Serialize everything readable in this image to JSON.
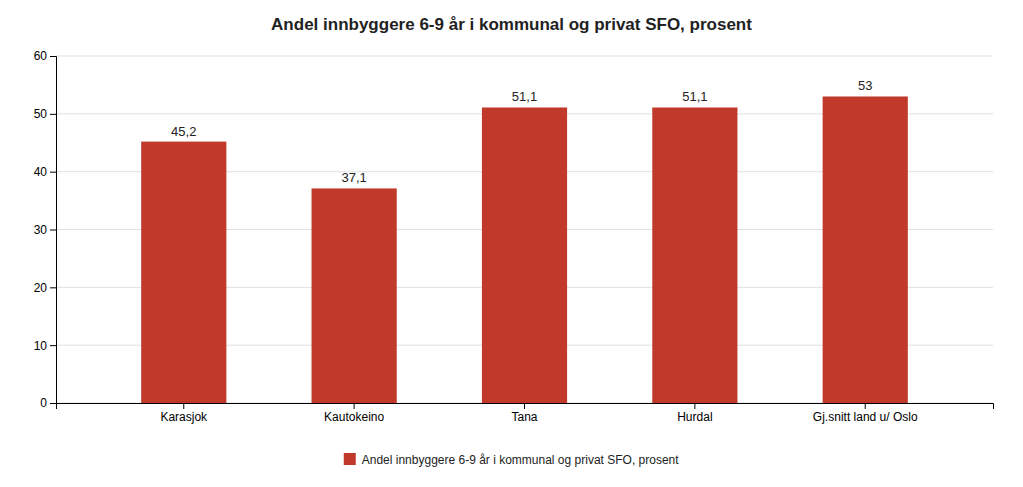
{
  "chart_data": {
    "type": "bar",
    "title": "Andel innbyggere 6-9 år i kommunal og privat SFO, prosent",
    "categories": [
      "Karasjok",
      "Kautokeino",
      "Tana",
      "Hurdal",
      "Gj.snitt land u/ Oslo"
    ],
    "series": [
      {
        "name": "Andel innbyggere 6-9 år i kommunal og privat SFO, prosent",
        "color": "#C0392B",
        "values": [
          45.2,
          37.1,
          51.1,
          51.1,
          53
        ],
        "value_labels": [
          "45,2",
          "37,1",
          "51,1",
          "51,1",
          "53"
        ]
      }
    ],
    "ylim": [
      0,
      60
    ],
    "yticks": [
      0,
      10,
      20,
      30,
      40,
      50,
      60
    ],
    "grid": true,
    "legend": "bottom",
    "data_labels": true
  }
}
